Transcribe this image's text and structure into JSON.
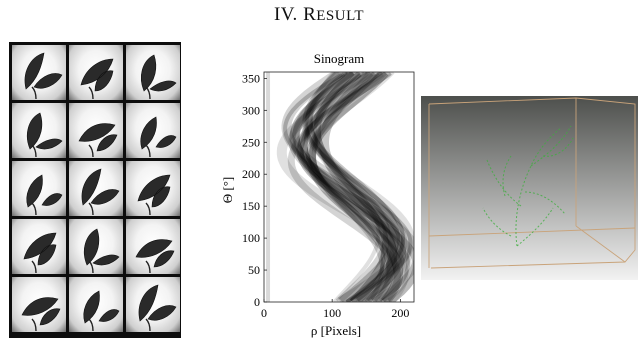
{
  "section": {
    "number": "IV.",
    "title_initial": "R",
    "title_rest": "ESULT"
  },
  "leaf_grid": {
    "rows": 5,
    "cols": 3
  },
  "chart_data": {
    "type": "heatmap",
    "title": "Sinogram",
    "xlabel": "ρ [Pixels]",
    "ylabel": "Θ [°]",
    "xlim": [
      0,
      220
    ],
    "ylim": [
      0,
      360
    ],
    "xticks": [
      0,
      100,
      200
    ],
    "yticks": [
      0,
      50,
      100,
      150,
      200,
      250,
      300,
      350
    ],
    "colormap": "gray-inverted",
    "grid": false
  },
  "volume_render": {
    "background_top": "#4d4f4c",
    "background_bottom": "#f2f2f2",
    "box_edge_color": "#c9a37a",
    "point_color": "#3fae3f"
  }
}
